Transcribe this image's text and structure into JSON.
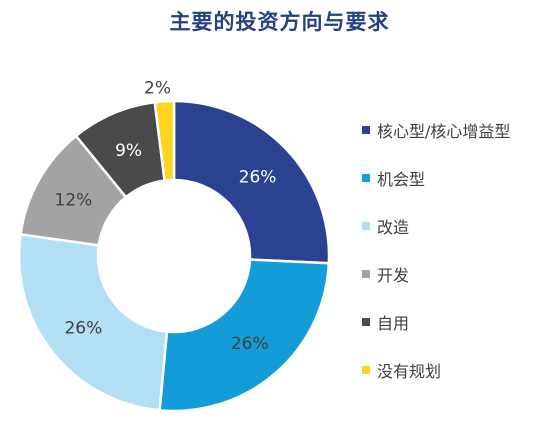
{
  "chart_data": {
    "type": "pie",
    "title": "主要的投资方向与要求",
    "donut": true,
    "legend_position": "right",
    "categories": [
      "核心型/核心增益型",
      "机会型",
      "改造",
      "开发",
      "自用",
      "没有规划"
    ],
    "values": [
      26,
      26,
      26,
      12,
      9,
      2
    ],
    "labels": [
      "26%",
      "26%",
      "26%",
      "12%",
      "9%",
      "2%"
    ],
    "colors": [
      "#2a4290",
      "#139cd8",
      "#b3dff4",
      "#a3a3a3",
      "#4a4a4a",
      "#ffd320"
    ],
    "label_colors": [
      "#ffffff",
      "#404040",
      "#404040",
      "#404040",
      "#ffffff",
      "#404040"
    ]
  }
}
